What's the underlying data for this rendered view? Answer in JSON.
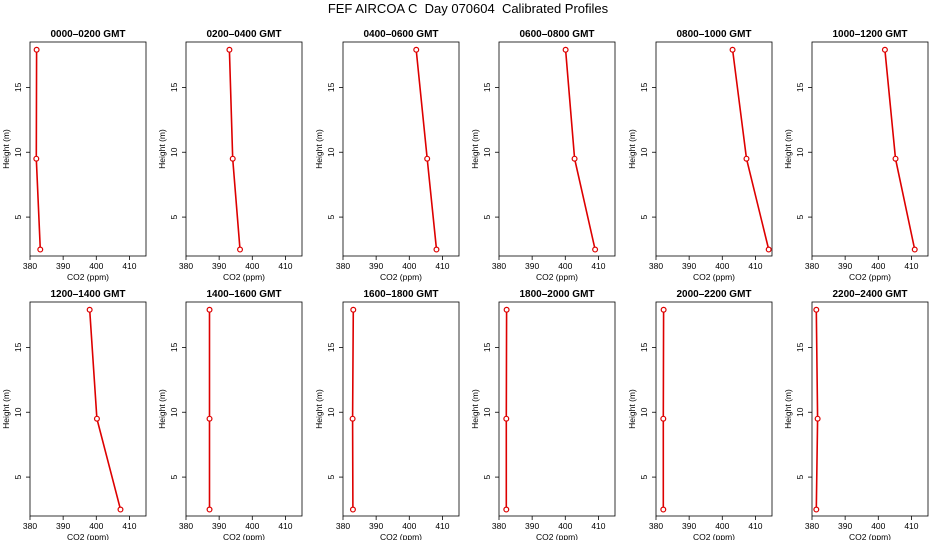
{
  "title": "FEF AIRCOA C  Day 070604  Calibrated Profiles",
  "colors": {
    "profile": "#dd0000",
    "axis": "#000000"
  },
  "chart_data": [
    {
      "type": "line",
      "title": "0000–0200 GMT",
      "xlabel": "CO2 (ppm)",
      "ylabel": "Height (m)",
      "xlim": [
        380,
        415
      ],
      "ylim": [
        2,
        18.5
      ],
      "xticks": [
        380,
        390,
        400,
        410
      ],
      "yticks": [
        5,
        10,
        15
      ],
      "x": [
        382.0,
        381.9,
        383.1
      ],
      "y": [
        17.9,
        9.5,
        2.5
      ]
    },
    {
      "type": "line",
      "title": "0200–0400 GMT",
      "xlabel": "CO2 (ppm)",
      "ylabel": "Height (m)",
      "xlim": [
        380,
        415
      ],
      "ylim": [
        2,
        18.5
      ],
      "xticks": [
        380,
        390,
        400,
        410
      ],
      "yticks": [
        5,
        10,
        15
      ],
      "x": [
        393.1,
        394.1,
        396.3
      ],
      "y": [
        17.9,
        9.5,
        2.5
      ]
    },
    {
      "type": "line",
      "title": "0400–0600 GMT",
      "xlabel": "CO2 (ppm)",
      "ylabel": "Height (m)",
      "xlim": [
        380,
        415
      ],
      "ylim": [
        2,
        18.5
      ],
      "xticks": [
        380,
        390,
        400,
        410
      ],
      "yticks": [
        5,
        10,
        15
      ],
      "x": [
        402.1,
        405.4,
        408.2
      ],
      "y": [
        17.9,
        9.5,
        2.5
      ]
    },
    {
      "type": "line",
      "title": "0600–0800 GMT",
      "xlabel": "CO2 (ppm)",
      "ylabel": "Height (m)",
      "xlim": [
        380,
        415
      ],
      "ylim": [
        2,
        18.5
      ],
      "xticks": [
        380,
        390,
        400,
        410
      ],
      "yticks": [
        5,
        10,
        15
      ],
      "x": [
        400.1,
        402.8,
        409.0
      ],
      "y": [
        17.9,
        9.5,
        2.5
      ]
    },
    {
      "type": "line",
      "title": "0800–1000 GMT",
      "xlabel": "CO2 (ppm)",
      "ylabel": "Height (m)",
      "xlim": [
        380,
        415
      ],
      "ylim": [
        2,
        18.5
      ],
      "xticks": [
        380,
        390,
        400,
        410
      ],
      "yticks": [
        5,
        10,
        15
      ],
      "x": [
        403.1,
        407.3,
        414.0
      ],
      "y": [
        17.9,
        9.5,
        2.5
      ]
    },
    {
      "type": "line",
      "title": "1000–1200 GMT",
      "xlabel": "CO2 (ppm)",
      "ylabel": "Height (m)",
      "xlim": [
        380,
        415
      ],
      "ylim": [
        2,
        18.5
      ],
      "xticks": [
        380,
        390,
        400,
        410
      ],
      "yticks": [
        5,
        10,
        15
      ],
      "x": [
        402.0,
        405.2,
        411.0
      ],
      "y": [
        17.9,
        9.5,
        2.5
      ]
    },
    {
      "type": "line",
      "title": "1200–1400 GMT",
      "xlabel": "CO2 (ppm)",
      "ylabel": "Height (m)",
      "xlim": [
        380,
        415
      ],
      "ylim": [
        2,
        18.5
      ],
      "xticks": [
        380,
        390,
        400,
        410
      ],
      "yticks": [
        5,
        10,
        15
      ],
      "x": [
        398.0,
        400.2,
        407.3
      ],
      "y": [
        17.9,
        9.5,
        2.5
      ]
    },
    {
      "type": "line",
      "title": "1400–1600 GMT",
      "xlabel": "CO2 (ppm)",
      "ylabel": "Height (m)",
      "xlim": [
        380,
        415
      ],
      "ylim": [
        2,
        18.5
      ],
      "xticks": [
        380,
        390,
        400,
        410
      ],
      "yticks": [
        5,
        10,
        15
      ],
      "x": [
        387.1,
        387.1,
        387.1
      ],
      "y": [
        17.9,
        9.5,
        2.5
      ]
    },
    {
      "type": "line",
      "title": "1600–1800 GMT",
      "xlabel": "CO2 (ppm)",
      "ylabel": "Height (m)",
      "xlim": [
        380,
        415
      ],
      "ylim": [
        2,
        18.5
      ],
      "xticks": [
        380,
        390,
        400,
        410
      ],
      "yticks": [
        5,
        10,
        15
      ],
      "x": [
        383.1,
        382.9,
        383.0
      ],
      "y": [
        17.9,
        9.5,
        2.5
      ]
    },
    {
      "type": "line",
      "title": "1800–2000 GMT",
      "xlabel": "CO2 (ppm)",
      "ylabel": "Height (m)",
      "xlim": [
        380,
        415
      ],
      "ylim": [
        2,
        18.5
      ],
      "xticks": [
        380,
        390,
        400,
        410
      ],
      "yticks": [
        5,
        10,
        15
      ],
      "x": [
        382.3,
        382.2,
        382.2
      ],
      "y": [
        17.9,
        9.5,
        2.5
      ]
    },
    {
      "type": "line",
      "title": "2000–2200 GMT",
      "xlabel": "CO2 (ppm)",
      "ylabel": "Height (m)",
      "xlim": [
        380,
        415
      ],
      "ylim": [
        2,
        18.5
      ],
      "xticks": [
        380,
        390,
        400,
        410
      ],
      "yticks": [
        5,
        10,
        15
      ],
      "x": [
        382.3,
        382.2,
        382.2
      ],
      "y": [
        17.9,
        9.5,
        2.5
      ]
    },
    {
      "type": "line",
      "title": "2200–2400 GMT",
      "xlabel": "CO2 (ppm)",
      "ylabel": "Height (m)",
      "xlim": [
        380,
        415
      ],
      "ylim": [
        2,
        18.5
      ],
      "xticks": [
        380,
        390,
        400,
        410
      ],
      "yticks": [
        5,
        10,
        15
      ],
      "x": [
        381.3,
        381.7,
        381.3
      ],
      "y": [
        17.9,
        9.5,
        2.5
      ]
    }
  ]
}
